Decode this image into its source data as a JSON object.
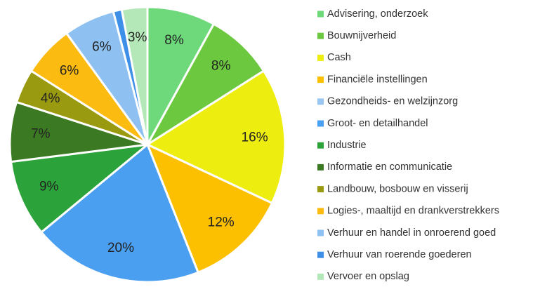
{
  "chart_data": {
    "type": "pie",
    "categories": [
      "Advisering, onderzoek",
      "Bouwnijverheid",
      "Cash",
      "Financiële instellingen",
      "Gezondheids- en welzijnzorg",
      "Groot- en detailhandel",
      "Industrie",
      "Informatie en communicatie",
      "Landbouw, bosbouw en visserij",
      "Logies-, maaltijd en drankverstrekkers",
      "Verhuur en handel in onroerend goed",
      "Verhuur van roerende goederen",
      "Vervoer en opslag"
    ],
    "values": [
      8,
      8,
      16,
      12,
      0,
      20,
      9,
      7,
      4,
      6,
      6,
      1,
      3
    ],
    "value_labels": [
      "8%",
      "8%",
      "16%",
      "12%",
      null,
      "20%",
      "9%",
      "7%",
      "4%",
      "6%",
      "6%",
      null,
      "3%"
    ],
    "colors": [
      "#6dd97a",
      "#6cc83e",
      "#eded10",
      "#fcc000",
      "#9ac6f2",
      "#4a9ff0",
      "#2ba33a",
      "#3b7a22",
      "#999a10",
      "#fcbb10",
      "#8ec1f2",
      "#3e8fe8",
      "#b4e8b8"
    ],
    "legend": "right"
  }
}
